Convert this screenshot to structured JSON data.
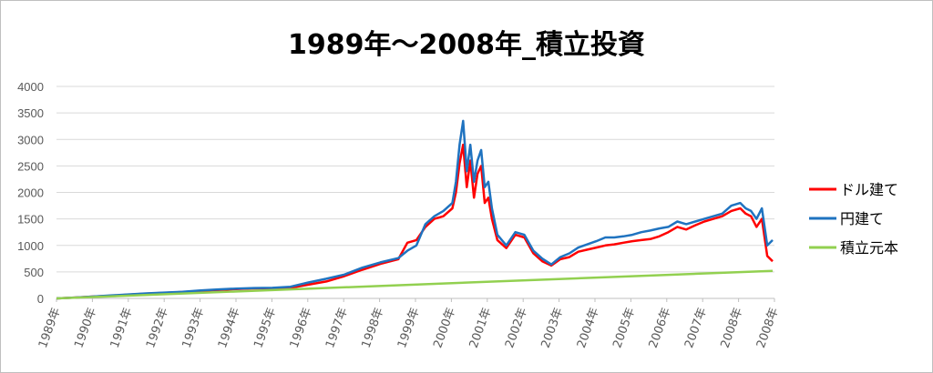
{
  "chart_data": {
    "type": "line",
    "title": "1989年～2008年_積立投資",
    "xlabel": "",
    "ylabel": "",
    "ylim": [
      0,
      4000
    ],
    "yticks": [
      0,
      500,
      1000,
      1500,
      2000,
      2500,
      3000,
      3500,
      4000
    ],
    "xlim": [
      1989.0,
      2008.95
    ],
    "categories": [
      "1989年",
      "1990年",
      "1991年",
      "1992年",
      "1993年",
      "1994年",
      "1995年",
      "1996年",
      "1997年",
      "1998年",
      "1999年",
      "2000年",
      "2001年",
      "2002年",
      "2003年",
      "2004年",
      "2005年",
      "2006年",
      "2007年",
      "2008年",
      "2008年"
    ],
    "grid": true,
    "legend": "right",
    "series": [
      {
        "name": "ドル建て",
        "color": "#ff0000",
        "x": [
          1989.0,
          1989.5,
          1990.0,
          1990.5,
          1991.0,
          1991.5,
          1992.0,
          1992.5,
          1993.0,
          1993.5,
          1994.0,
          1994.5,
          1995.0,
          1995.5,
          1996.0,
          1996.5,
          1997.0,
          1997.5,
          1998.0,
          1998.5,
          1998.75,
          1999.0,
          1999.25,
          1999.5,
          1999.75,
          2000.0,
          2000.1,
          2000.2,
          2000.3,
          2000.4,
          2000.5,
          2000.6,
          2000.7,
          2000.8,
          2000.9,
          2001.0,
          2001.1,
          2001.25,
          2001.5,
          2001.75,
          2002.0,
          2002.25,
          2002.5,
          2002.75,
          2003.0,
          2003.25,
          2003.5,
          2003.75,
          2004.0,
          2004.25,
          2004.5,
          2004.75,
          2005.0,
          2005.25,
          2005.5,
          2005.75,
          2006.0,
          2006.25,
          2006.5,
          2006.75,
          2007.0,
          2007.25,
          2007.5,
          2007.75,
          2008.0,
          2008.15,
          2008.3,
          2008.45,
          2008.6,
          2008.75,
          2008.9
        ],
        "values": [
          0,
          15,
          35,
          50,
          70,
          90,
          105,
          120,
          140,
          160,
          175,
          190,
          185,
          200,
          260,
          320,
          420,
          540,
          650,
          740,
          1050,
          1100,
          1350,
          1500,
          1550,
          1700,
          2000,
          2550,
          2900,
          2100,
          2600,
          1900,
          2350,
          2500,
          1800,
          1900,
          1500,
          1100,
          950,
          1200,
          1150,
          850,
          700,
          620,
          740,
          780,
          880,
          920,
          960,
          1000,
          1020,
          1050,
          1080,
          1100,
          1120,
          1170,
          1250,
          1350,
          1300,
          1380,
          1450,
          1500,
          1550,
          1650,
          1700,
          1600,
          1550,
          1350,
          1500,
          800,
          700
        ]
      },
      {
        "name": "円建て",
        "color": "#1f73c0",
        "x": [
          1989.0,
          1989.5,
          1990.0,
          1990.5,
          1991.0,
          1991.5,
          1992.0,
          1992.5,
          1993.0,
          1993.5,
          1994.0,
          1994.5,
          1995.0,
          1995.5,
          1996.0,
          1996.5,
          1997.0,
          1997.5,
          1998.0,
          1998.5,
          1998.75,
          1999.0,
          1999.25,
          1999.5,
          1999.75,
          2000.0,
          2000.1,
          2000.2,
          2000.3,
          2000.4,
          2000.5,
          2000.6,
          2000.7,
          2000.8,
          2000.9,
          2001.0,
          2001.1,
          2001.25,
          2001.5,
          2001.75,
          2002.0,
          2002.25,
          2002.5,
          2002.75,
          2003.0,
          2003.25,
          2003.5,
          2003.75,
          2004.0,
          2004.25,
          2004.5,
          2004.75,
          2005.0,
          2005.25,
          2005.5,
          2005.75,
          2006.0,
          2006.25,
          2006.5,
          2006.75,
          2007.0,
          2007.25,
          2007.5,
          2007.75,
          2008.0,
          2008.15,
          2008.3,
          2008.45,
          2008.6,
          2008.75,
          2008.9
        ],
        "values": [
          0,
          15,
          35,
          55,
          75,
          95,
          110,
          125,
          150,
          170,
          185,
          195,
          200,
          220,
          300,
          370,
          450,
          580,
          680,
          760,
          900,
          1000,
          1400,
          1550,
          1650,
          1800,
          2200,
          2900,
          3350,
          2400,
          2900,
          2200,
          2600,
          2800,
          2100,
          2200,
          1700,
          1200,
          1000,
          1250,
          1200,
          900,
          750,
          640,
          780,
          850,
          960,
          1020,
          1080,
          1150,
          1150,
          1170,
          1200,
          1250,
          1280,
          1320,
          1350,
          1450,
          1400,
          1450,
          1500,
          1550,
          1600,
          1750,
          1800,
          1700,
          1650,
          1500,
          1700,
          1000,
          1100
        ]
      },
      {
        "name": "積立元本",
        "color": "#92d050",
        "x": [
          1989.0,
          2008.9
        ],
        "values": [
          0,
          520
        ]
      }
    ]
  }
}
